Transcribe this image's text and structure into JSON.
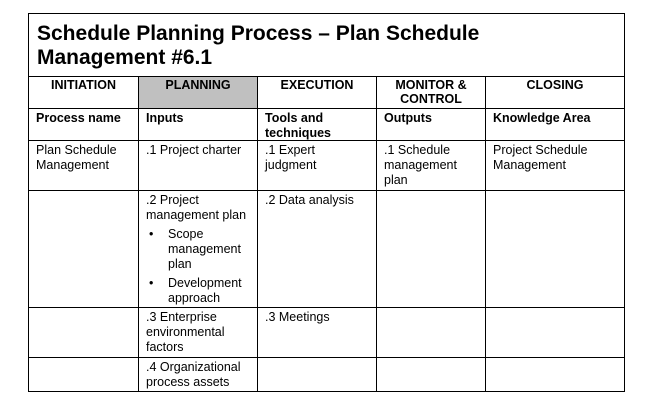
{
  "title": {
    "line1": "Schedule Planning Process – Plan Schedule",
    "line2": "Management #6.1"
  },
  "phases": [
    "INITIATION",
    "PLANNING",
    "EXECUTION",
    "MONITOR &\nCONTROL",
    "CLOSING"
  ],
  "active_phase": "PLANNING",
  "headers": [
    "Process name",
    "Inputs",
    "Tools and techniques",
    "Outputs",
    "Knowledge Area"
  ],
  "row1": {
    "process_name": "Plan Schedule Management",
    "input": ".1 Project charter",
    "tool": ".1 Expert judgment",
    "output": ".1 Schedule management plan",
    "knowledge_area": "Project Schedule Management"
  },
  "row2": {
    "input": ".2 Project management plan",
    "input_bullets": [
      "Scope management plan",
      "Development approach"
    ],
    "tool": ".2 Data analysis"
  },
  "row3": {
    "input": ".3 Enterprise environmental factors",
    "tool": ".3 Meetings"
  },
  "row4": {
    "input": ".4 Organizational process assets"
  }
}
